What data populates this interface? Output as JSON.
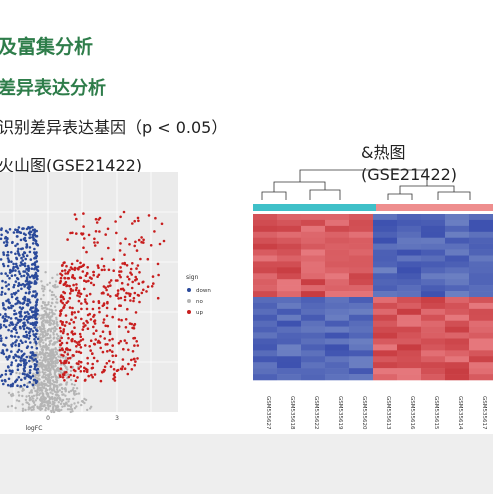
{
  "slide": {
    "heading1": "及富集分析",
    "heading2": "差异表达分析",
    "subtitle": "识别差异表达基因（p < 0.05）",
    "left_label": "火山图(GSE21422)",
    "right_label_line1": "&热图",
    "right_label_line2": "(GSE21422)"
  },
  "colors": {
    "heading": "#2e7d4a",
    "down": "#2b4a9b",
    "no": "#b5b5b5",
    "up": "#c81e1e",
    "group1": "#3fc0c8",
    "group2": "#ee8e8e"
  },
  "chart_data": [
    {
      "type": "scatter",
      "title": "",
      "xlabel": "logFC",
      "ylabel": "",
      "x_ticks": [
        "0",
        "3"
      ],
      "legend": {
        "title": "sign",
        "placement": "right",
        "entries": [
          {
            "label": "down",
            "color": "#2b4a9b"
          },
          {
            "label": "no",
            "color": "#b5b5b5"
          },
          {
            "label": "up",
            "color": "#c81e1e"
          }
        ]
      },
      "grid": true
    },
    {
      "type": "heatmap",
      "title": "",
      "samples": [
        "GSM535627",
        "GSM535618",
        "GSM535622",
        "GSM535619",
        "GSM535620",
        "GSM535613",
        "GSM535616",
        "GSM535615",
        "GSM535614",
        "GSM535617"
      ],
      "groups": [
        {
          "color": "#3fc0c8",
          "count": 5
        },
        {
          "color": "#ee8e8e",
          "count": 5
        }
      ],
      "rows_upper": 14,
      "rows_lower": 14
    }
  ]
}
